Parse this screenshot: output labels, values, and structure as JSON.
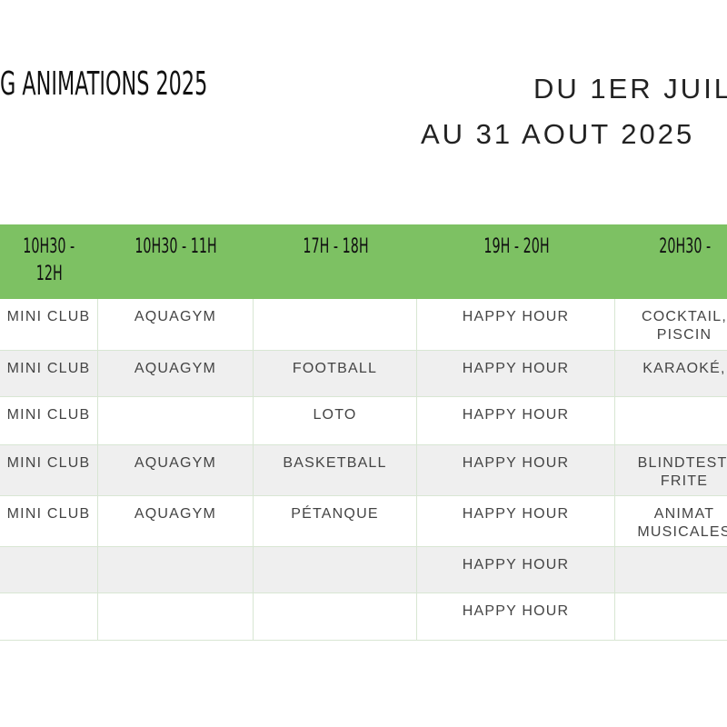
{
  "header": {
    "title": "G ANIMATIONS 2025",
    "dates": [
      "DU 1ER JUIL",
      "AU 31 AOUT 2025"
    ]
  },
  "table": {
    "columns": [
      [
        "10H30 -",
        "12H"
      ],
      "10H30 - 11H",
      "17H - 18H",
      "19H - 20H",
      "20H30 -"
    ],
    "rows": [
      [
        "MINI CLUB",
        "AQUAGYM",
        null,
        "HAPPY HOUR",
        [
          "COCKTAIL,",
          "PISCIN"
        ]
      ],
      [
        "MINI CLUB",
        "AQUAGYM",
        "FOOTBALL",
        "HAPPY HOUR",
        "KARAOKÉ,"
      ],
      [
        "MINI CLUB",
        null,
        "LOTO",
        "HAPPY HOUR",
        null
      ],
      [
        "MINI CLUB",
        "AQUAGYM",
        "BASKETBALL",
        "HAPPY HOUR",
        [
          "BLINDTEST,",
          "FRITE"
        ]
      ],
      [
        "MINI CLUB",
        "AQUAGYM",
        "PÉTANQUE",
        "HAPPY HOUR",
        [
          "ANIMAT",
          "MUSICALES"
        ]
      ],
      [
        null,
        null,
        null,
        "HAPPY HOUR",
        null
      ],
      [
        null,
        null,
        null,
        "HAPPY HOUR",
        null
      ]
    ]
  }
}
